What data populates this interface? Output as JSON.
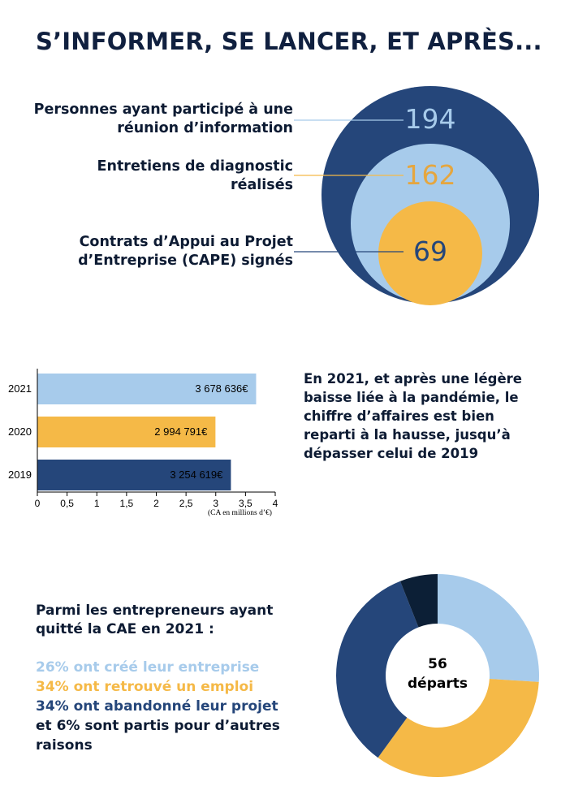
{
  "title": "S’INFORMER, SE LANCER, ET APRÈS...",
  "colors": {
    "dark_blue": "#25467a",
    "light_blue": "#a7cbeb",
    "orange": "#f5b947",
    "navy": "#0c1f36"
  },
  "circles": {
    "items": [
      {
        "label_line1": "Personnes ayant participé à une",
        "label_line2": "réunion d’information",
        "value": "194",
        "color": "#25467a",
        "text_color": "#a7cbeb"
      },
      {
        "label_line1": "Entretiens de diagnostic",
        "label_line2": "réalisés",
        "value": "162",
        "color": "#a7cbeb",
        "text_color": "#e5a63f"
      },
      {
        "label_line1": "Contrats d’Appui au Projet",
        "label_line2": "d’Entreprise (CAPE) signés",
        "value": "69",
        "color": "#f5b947",
        "text_color": "#25467a"
      }
    ]
  },
  "chart_data": [
    {
      "type": "bar",
      "orientation": "horizontal",
      "categories": [
        "2021",
        "2020",
        "2019"
      ],
      "values": [
        3.678636,
        2.994791,
        3.254619
      ],
      "value_labels": [
        "3 678 636€",
        "2 994 791€",
        "3 254 619€"
      ],
      "colors": [
        "#a7cbeb",
        "#f5b947",
        "#25467a"
      ],
      "xlim": [
        0,
        4
      ],
      "xticks": [
        "0",
        "0,5",
        "1",
        "1,5",
        "2",
        "2,5",
        "3",
        "3,5",
        "4"
      ],
      "xlabel": "(CA en millions d’€)"
    },
    {
      "type": "pie",
      "donut": true,
      "center_value": "56",
      "center_label": "départs",
      "slices": [
        {
          "label": "26% ont créé leur entreprise",
          "value": 26,
          "color": "#a7cbeb"
        },
        {
          "label": "34% ont retrouvé un emploi",
          "value": 34,
          "color": "#f5b947"
        },
        {
          "label": "34% ont abandonné leur projet",
          "value": 34,
          "color": "#25467a"
        },
        {
          "label": "et 6% sont partis pour d’autres raisons",
          "value": 6,
          "color": "#0c1f36"
        }
      ]
    }
  ],
  "ca_text": "En 2021, et après une légère baisse liée à la pandémie, le chiffre d’affaires est bien reparti à la hausse, jusqu’à dépasser celui de 2019",
  "exits": {
    "heading": "Parmi les entrepreneurs ayant quitté la CAE en 2021 :",
    "line1": "26% ont créé leur entreprise",
    "line2": "34% ont retrouvé un emploi",
    "line3": "34% ont abandonné leur projet",
    "line4a": "et 6% sont partis pour d’autres",
    "line4b": "raisons"
  }
}
